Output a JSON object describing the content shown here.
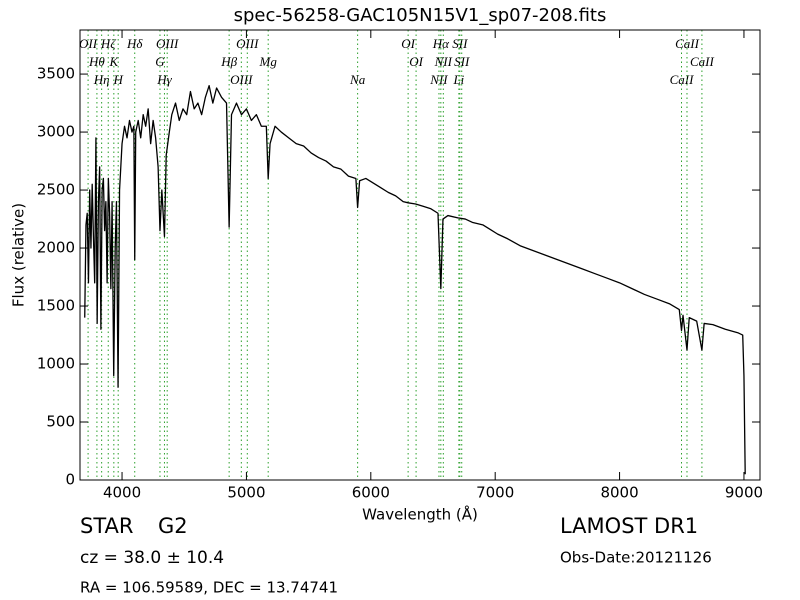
{
  "chart_data": {
    "type": "line",
    "title": "spec-56258-GAC105N15V1_sp07-208.fits",
    "x_label": "Wavelength (Å)",
    "y_label": "Flux (relative)",
    "xlim": [
      3662,
      9129
    ],
    "ylim": [
      0,
      3880
    ],
    "xticks": [
      4000,
      5000,
      6000,
      7000,
      8000,
      9000
    ],
    "yticks": [
      0,
      500,
      1000,
      1500,
      2000,
      2500,
      3000,
      3500
    ],
    "color": "#000000",
    "annotation_color": "#2ca02c",
    "x": [
      3700,
      3710,
      3720,
      3730,
      3740,
      3750,
      3760,
      3770,
      3780,
      3790,
      3800,
      3810,
      3820,
      3830,
      3840,
      3850,
      3860,
      3870,
      3880,
      3890,
      3900,
      3910,
      3920,
      3933,
      3945,
      3955,
      3968,
      3980,
      3990,
      4000,
      4020,
      4040,
      4060,
      4080,
      4095,
      4102,
      4110,
      4130,
      4150,
      4170,
      4190,
      4210,
      4230,
      4250,
      4270,
      4290,
      4305,
      4320,
      4341,
      4355,
      4380,
      4400,
      4430,
      4460,
      4490,
      4520,
      4550,
      4580,
      4610,
      4640,
      4670,
      4700,
      4730,
      4760,
      4800,
      4840,
      4861,
      4880,
      4920,
      4960,
      5000,
      5040,
      5080,
      5120,
      5160,
      5175,
      5190,
      5230,
      5280,
      5340,
      5400,
      5460,
      5520,
      5580,
      5640,
      5700,
      5760,
      5820,
      5880,
      5894,
      5910,
      5960,
      6020,
      6080,
      6140,
      6200,
      6260,
      6300,
      6360,
      6420,
      6480,
      6540,
      6563,
      6580,
      6620,
      6700,
      6760,
      6820,
      6900,
      6960,
      7020,
      7100,
      7200,
      7300,
      7400,
      7500,
      7600,
      7700,
      7800,
      7900,
      8000,
      8100,
      8200,
      8300,
      8400,
      8480,
      8498,
      8510,
      8542,
      8560,
      8620,
      8662,
      8680,
      8750,
      8850,
      8950,
      8990,
      9000,
      9010
    ],
    "values": [
      1400,
      2200,
      2300,
      1700,
      2500,
      2000,
      2550,
      2100,
      1700,
      2950,
      1350,
      2400,
      2700,
      1300,
      2500,
      2600,
      2150,
      2400,
      1700,
      2600,
      2300,
      1650,
      2400,
      900,
      2000,
      2400,
      800,
      2500,
      2700,
      2900,
      3050,
      2950,
      3100,
      3000,
      3050,
      1900,
      3000,
      3100,
      2950,
      3150,
      3050,
      3200,
      2900,
      3100,
      2950,
      2700,
      2150,
      2500,
      2100,
      2800,
      3000,
      3150,
      3250,
      3100,
      3200,
      3150,
      3350,
      3200,
      3250,
      3150,
      3300,
      3400,
      3250,
      3380,
      3300,
      3250,
      2180,
      3150,
      3250,
      3150,
      3200,
      3100,
      3150,
      3050,
      3050,
      2600,
      2900,
      3050,
      3000,
      2950,
      2900,
      2880,
      2820,
      2780,
      2750,
      2700,
      2680,
      2620,
      2600,
      2350,
      2580,
      2600,
      2560,
      2520,
      2480,
      2450,
      2400,
      2390,
      2380,
      2360,
      2340,
      2300,
      1650,
      2250,
      2280,
      2260,
      2250,
      2220,
      2200,
      2160,
      2120,
      2080,
      2020,
      1980,
      1940,
      1900,
      1860,
      1820,
      1780,
      1740,
      1700,
      1650,
      1600,
      1560,
      1520,
      1470,
      1290,
      1420,
      1120,
      1400,
      1370,
      1120,
      1350,
      1340,
      1300,
      1270,
      1250,
      900,
      50
    ],
    "annotations": [
      {
        "label": "OII",
        "x": 3727
      },
      {
        "label": "Hθ",
        "x": 3798
      },
      {
        "label": "Hη",
        "x": 3836
      },
      {
        "label": "Hζ",
        "x": 3889
      },
      {
        "label": "K",
        "x": 3934
      },
      {
        "label": "H",
        "x": 3969
      },
      {
        "label": "Hδ",
        "x": 4102
      },
      {
        "label": "G",
        "x": 4305
      },
      {
        "label": "Hγ",
        "x": 4341
      },
      {
        "label": "OIII",
        "x": 4363
      },
      {
        "label": "Hβ",
        "x": 4861
      },
      {
        "label": "OIII",
        "x": 4959
      },
      {
        "label": "OIII",
        "x": 5007
      },
      {
        "label": "Mg",
        "x": 5175
      },
      {
        "label": "Na",
        "x": 5894
      },
      {
        "label": "OI",
        "x": 6300
      },
      {
        "label": "OI",
        "x": 6364
      },
      {
        "label": "NII",
        "x": 6548
      },
      {
        "label": "Hα",
        "x": 6563
      },
      {
        "label": "NII",
        "x": 6583
      },
      {
        "label": "Li",
        "x": 6708
      },
      {
        "label": "SII",
        "x": 6716
      },
      {
        "label": "SII",
        "x": 6731
      },
      {
        "label": "CaII",
        "x": 8498
      },
      {
        "label": "CaII",
        "x": 8542
      },
      {
        "label": "CaII",
        "x": 8662
      }
    ]
  },
  "info": {
    "object_class": "STAR",
    "subclass": "G2",
    "redshift": "cz = 38.0 ± 10.4",
    "coordinates": "RA = 106.59589, DEC = 13.74741",
    "release": "LAMOST DR1",
    "obs_date": "Obs-Date:20121126"
  }
}
